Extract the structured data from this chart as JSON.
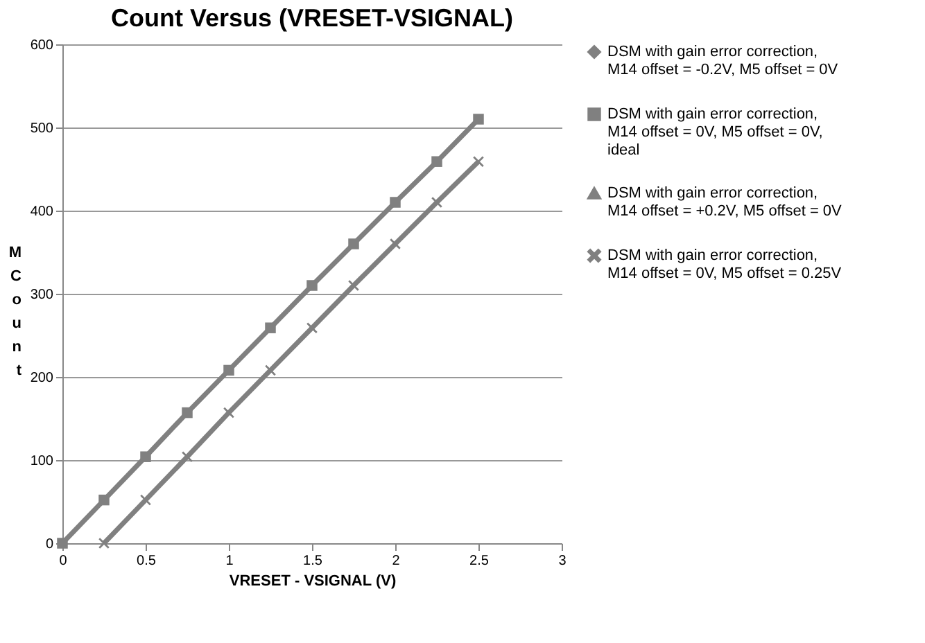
{
  "chart_data": {
    "type": "line",
    "title": "Count Versus (VRESET-VSIGNAL)",
    "xlabel": "VRESET - VSIGNAL (V)",
    "ylabel": "M Count",
    "xlim": [
      0,
      3
    ],
    "xticks": [
      0,
      0.5,
      1,
      1.5,
      2,
      2.5,
      3
    ],
    "ylim": [
      0,
      600
    ],
    "yticks": [
      0,
      100,
      200,
      300,
      400,
      500,
      600
    ],
    "grid": "y",
    "legend": "right",
    "series": [
      {
        "name": "DSM with gain error correction, M14 offset = -0.2V, M5 offset = 0V",
        "color": "#808080",
        "marker": "diamond",
        "values": [
          null,
          null,
          null,
          null,
          null,
          null,
          null,
          null,
          null,
          null,
          null
        ]
      },
      {
        "name": "DSM with gain error correction, M14 offset = 0V, M5 offset = 0V, ideal",
        "color": "#808080",
        "marker": "square",
        "x": [
          0,
          0.25,
          0.5,
          0.75,
          1,
          1.25,
          1.5,
          1.75,
          2,
          2.25,
          2.5
        ],
        "values": [
          0,
          52,
          104,
          157,
          208,
          259,
          310,
          360,
          410,
          459,
          510
        ]
      },
      {
        "name": "DSM with gain error correction, M14 offset = +0.2V, M5 offset = 0V",
        "color": "#808080",
        "marker": "triangle",
        "values": [
          null,
          null,
          null,
          null,
          null,
          null,
          null,
          null,
          null,
          null,
          null
        ]
      },
      {
        "name": "DSM with gain error correction, M14 offset = 0V, M5 offset = 0.25V",
        "color": "#808080",
        "marker": "cross",
        "x": [
          0.25,
          0.5,
          0.75,
          1,
          1.25,
          1.5,
          1.75,
          2,
          2.25,
          2.5
        ],
        "values": [
          0,
          52,
          104,
          157,
          208,
          259,
          310,
          360,
          410,
          459
        ]
      }
    ]
  }
}
